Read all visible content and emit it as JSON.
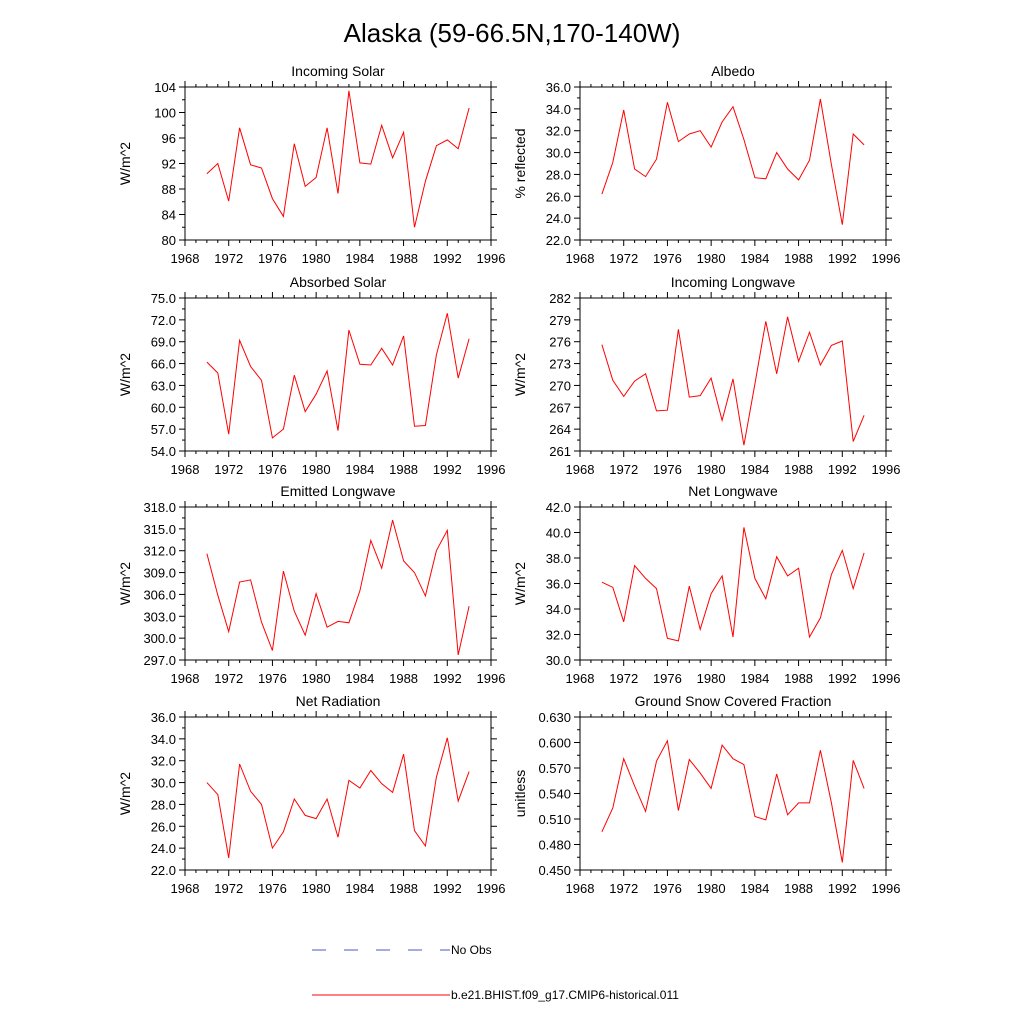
{
  "page_title": "Alaska (59-66.5N,170-140W)",
  "legend": {
    "items": [
      {
        "label": "No Obs",
        "color": "#4a5bc4",
        "dashed": true
      },
      {
        "label": "b.e21.BHIST.f09_g17.CMIP6-historical.011",
        "color": "#ff0000",
        "dashed": false
      }
    ]
  },
  "chart_data": [
    {
      "type": "line",
      "title": "Incoming Solar",
      "ylabel": "W/m^2",
      "xlim": [
        1968,
        1996
      ],
      "ylim": [
        80,
        104
      ],
      "xticks": [
        1968,
        1972,
        1976,
        1980,
        1984,
        1988,
        1992,
        1996
      ],
      "xtick_labels": [
        "1968",
        "1972",
        "1976",
        "1980",
        "1984",
        "1988",
        "1992",
        "1996"
      ],
      "yticks": [
        80,
        84,
        88,
        92,
        96,
        100,
        104
      ],
      "ytick_labels": [
        "80",
        "84",
        "88",
        "92",
        "96",
        "100",
        "104"
      ],
      "grid": false,
      "series": [
        {
          "color": "#ff0000",
          "x": [
            1970,
            1971,
            1972,
            1973,
            1974,
            1975,
            1976,
            1977,
            1978,
            1979,
            1980,
            1981,
            1982,
            1983,
            1984,
            1985,
            1986,
            1987,
            1988,
            1989,
            1990,
            1991,
            1992,
            1993,
            1994
          ],
          "y": [
            90.4,
            92.0,
            86.1,
            97.6,
            91.8,
            91.3,
            86.5,
            83.7,
            95.1,
            88.4,
            89.8,
            97.6,
            87.3,
            103.4,
            92.1,
            91.9,
            98.0,
            92.9,
            96.9,
            82.0,
            89.2,
            94.8,
            95.7,
            94.3,
            100.7
          ]
        }
      ]
    },
    {
      "type": "line",
      "title": "Albedo",
      "ylabel": "% reflected",
      "xlim": [
        1968,
        1996
      ],
      "ylim": [
        22,
        36
      ],
      "xticks": [
        1968,
        1972,
        1976,
        1980,
        1984,
        1988,
        1992,
        1996
      ],
      "xtick_labels": [
        "1968",
        "1972",
        "1976",
        "1980",
        "1984",
        "1988",
        "1992",
        "1996"
      ],
      "yticks": [
        22,
        24,
        26,
        28,
        30,
        32,
        34,
        36
      ],
      "ytick_labels": [
        "22.0",
        "24.0",
        "26.0",
        "28.0",
        "30.0",
        "32.0",
        "34.0",
        "36.0"
      ],
      "grid": false,
      "series": [
        {
          "color": "#ff0000",
          "x": [
            1970,
            1971,
            1972,
            1973,
            1974,
            1975,
            1976,
            1977,
            1978,
            1979,
            1980,
            1981,
            1982,
            1983,
            1984,
            1985,
            1986,
            1987,
            1988,
            1989,
            1990,
            1991,
            1992,
            1993,
            1994
          ],
          "y": [
            26.2,
            29.1,
            33.9,
            28.5,
            27.8,
            29.4,
            34.6,
            31.0,
            31.7,
            32.0,
            30.5,
            32.8,
            34.2,
            31.2,
            27.7,
            27.6,
            30.0,
            28.5,
            27.5,
            29.3,
            34.9,
            28.9,
            23.4,
            31.7,
            30.7
          ]
        }
      ]
    },
    {
      "type": "line",
      "title": "Absorbed Solar",
      "ylabel": "W/m^2",
      "xlim": [
        1968,
        1996
      ],
      "ylim": [
        54,
        75
      ],
      "xticks": [
        1968,
        1972,
        1976,
        1980,
        1984,
        1988,
        1992,
        1996
      ],
      "xtick_labels": [
        "1968",
        "1972",
        "1976",
        "1980",
        "1984",
        "1988",
        "1992",
        "1996"
      ],
      "yticks": [
        54,
        57,
        60,
        63,
        66,
        69,
        72,
        75
      ],
      "ytick_labels": [
        "54.0",
        "57.0",
        "60.0",
        "63.0",
        "66.0",
        "69.0",
        "72.0",
        "75.0"
      ],
      "grid": false,
      "series": [
        {
          "color": "#ff0000",
          "x": [
            1970,
            1971,
            1972,
            1973,
            1974,
            1975,
            1976,
            1977,
            1978,
            1979,
            1980,
            1981,
            1982,
            1983,
            1984,
            1985,
            1986,
            1987,
            1988,
            1989,
            1990,
            1991,
            1992,
            1993,
            1994
          ],
          "y": [
            66.2,
            64.7,
            56.3,
            69.2,
            65.6,
            63.7,
            55.8,
            57.0,
            64.4,
            59.4,
            61.8,
            65.0,
            56.8,
            70.6,
            65.9,
            65.8,
            68.1,
            65.8,
            69.8,
            57.4,
            57.5,
            67.2,
            72.9,
            64.0,
            69.4
          ]
        }
      ]
    },
    {
      "type": "line",
      "title": "Incoming Longwave",
      "ylabel": "W/m^2",
      "xlim": [
        1968,
        1996
      ],
      "ylim": [
        261,
        282
      ],
      "xticks": [
        1968,
        1972,
        1976,
        1980,
        1984,
        1988,
        1992,
        1996
      ],
      "xtick_labels": [
        "1968",
        "1972",
        "1976",
        "1980",
        "1984",
        "1988",
        "1992",
        "1996"
      ],
      "yticks": [
        261,
        264,
        267,
        270,
        273,
        276,
        279,
        282
      ],
      "ytick_labels": [
        "261",
        "264",
        "267",
        "270",
        "273",
        "276",
        "279",
        "282"
      ],
      "grid": false,
      "series": [
        {
          "color": "#ff0000",
          "x": [
            1970,
            1971,
            1972,
            1973,
            1974,
            1975,
            1976,
            1977,
            1978,
            1979,
            1980,
            1981,
            1982,
            1983,
            1984,
            1985,
            1986,
            1987,
            1988,
            1989,
            1990,
            1991,
            1992,
            1993,
            1994
          ],
          "y": [
            275.6,
            270.7,
            268.5,
            270.6,
            271.6,
            266.5,
            266.6,
            277.7,
            268.4,
            268.6,
            271.0,
            265.2,
            270.9,
            261.8,
            270.2,
            278.8,
            271.6,
            279.4,
            273.3,
            277.3,
            272.8,
            275.5,
            276.1,
            262.3,
            265.9
          ]
        }
      ]
    },
    {
      "type": "line",
      "title": "Emitted Longwave",
      "ylabel": "W/m^2",
      "xlim": [
        1968,
        1996
      ],
      "ylim": [
        297,
        318
      ],
      "xticks": [
        1968,
        1972,
        1976,
        1980,
        1984,
        1988,
        1992,
        1996
      ],
      "xtick_labels": [
        "1968",
        "1972",
        "1976",
        "1980",
        "1984",
        "1988",
        "1992",
        "1996"
      ],
      "yticks": [
        297,
        300,
        303,
        306,
        309,
        312,
        315,
        318
      ],
      "ytick_labels": [
        "297.0",
        "300.0",
        "303.0",
        "306.0",
        "309.0",
        "312.0",
        "315.0",
        "318.0"
      ],
      "grid": false,
      "series": [
        {
          "color": "#ff0000",
          "x": [
            1970,
            1971,
            1972,
            1973,
            1974,
            1975,
            1976,
            1977,
            1978,
            1979,
            1980,
            1981,
            1982,
            1983,
            1984,
            1985,
            1986,
            1987,
            1988,
            1989,
            1990,
            1991,
            1992,
            1993,
            1994
          ],
          "y": [
            311.6,
            305.9,
            300.9,
            307.7,
            308.0,
            302.2,
            298.3,
            309.2,
            303.7,
            300.4,
            306.1,
            301.5,
            302.3,
            302.1,
            306.5,
            313.4,
            309.6,
            316.2,
            310.6,
            309.0,
            305.8,
            312.0,
            314.8,
            297.7,
            304.4
          ]
        }
      ]
    },
    {
      "type": "line",
      "title": "Net Longwave",
      "ylabel": "W/m^2",
      "xlim": [
        1968,
        1996
      ],
      "ylim": [
        30,
        42
      ],
      "xticks": [
        1968,
        1972,
        1976,
        1980,
        1984,
        1988,
        1992,
        1996
      ],
      "xtick_labels": [
        "1968",
        "1972",
        "1976",
        "1980",
        "1984",
        "1988",
        "1992",
        "1996"
      ],
      "yticks": [
        30,
        32,
        34,
        36,
        38,
        40,
        42
      ],
      "ytick_labels": [
        "30.0",
        "32.0",
        "34.0",
        "36.0",
        "38.0",
        "40.0",
        "42.0"
      ],
      "grid": false,
      "series": [
        {
          "color": "#ff0000",
          "x": [
            1970,
            1971,
            1972,
            1973,
            1974,
            1975,
            1976,
            1977,
            1978,
            1979,
            1980,
            1981,
            1982,
            1983,
            1984,
            1985,
            1986,
            1987,
            1988,
            1989,
            1990,
            1991,
            1992,
            1993,
            1994
          ],
          "y": [
            36.1,
            35.7,
            33.0,
            37.4,
            36.4,
            35.6,
            31.7,
            31.5,
            35.8,
            32.4,
            35.2,
            36.6,
            31.8,
            40.4,
            36.4,
            34.8,
            38.1,
            36.6,
            37.2,
            31.8,
            33.3,
            36.7,
            38.6,
            35.6,
            38.4
          ]
        }
      ]
    },
    {
      "type": "line",
      "title": "Net Radiation",
      "ylabel": "W/m^2",
      "xlim": [
        1968,
        1996
      ],
      "ylim": [
        22,
        36
      ],
      "xticks": [
        1968,
        1972,
        1976,
        1980,
        1984,
        1988,
        1992,
        1996
      ],
      "xtick_labels": [
        "1968",
        "1972",
        "1976",
        "1980",
        "1984",
        "1988",
        "1992",
        "1996"
      ],
      "yticks": [
        22,
        24,
        26,
        28,
        30,
        32,
        34,
        36
      ],
      "ytick_labels": [
        "22.0",
        "24.0",
        "26.0",
        "28.0",
        "30.0",
        "32.0",
        "34.0",
        "36.0"
      ],
      "grid": false,
      "series": [
        {
          "color": "#ff0000",
          "x": [
            1970,
            1971,
            1972,
            1973,
            1974,
            1975,
            1976,
            1977,
            1978,
            1979,
            1980,
            1981,
            1982,
            1983,
            1984,
            1985,
            1986,
            1987,
            1988,
            1989,
            1990,
            1991,
            1992,
            1993,
            1994
          ],
          "y": [
            30.0,
            28.9,
            23.1,
            31.7,
            29.2,
            28.0,
            24.0,
            25.5,
            28.5,
            27.0,
            26.7,
            28.5,
            25.0,
            30.2,
            29.5,
            31.1,
            29.9,
            29.1,
            32.6,
            25.6,
            24.2,
            30.5,
            34.1,
            28.3,
            31.0
          ]
        }
      ]
    },
    {
      "type": "line",
      "title": "Ground Snow Covered Fraction",
      "ylabel": "unitless",
      "xlim": [
        1968,
        1996
      ],
      "ylim": [
        0.45,
        0.63
      ],
      "xticks": [
        1968,
        1972,
        1976,
        1980,
        1984,
        1988,
        1992,
        1996
      ],
      "xtick_labels": [
        "1968",
        "1972",
        "1976",
        "1980",
        "1984",
        "1988",
        "1992",
        "1996"
      ],
      "yticks": [
        0.45,
        0.48,
        0.51,
        0.54,
        0.57,
        0.6,
        0.63
      ],
      "ytick_labels": [
        "0.450",
        "0.480",
        "0.510",
        "0.540",
        "0.570",
        "0.600",
        "0.630"
      ],
      "grid": false,
      "series": [
        {
          "color": "#ff0000",
          "x": [
            1970,
            1971,
            1972,
            1973,
            1974,
            1975,
            1976,
            1977,
            1978,
            1979,
            1980,
            1981,
            1982,
            1983,
            1984,
            1985,
            1986,
            1987,
            1988,
            1989,
            1990,
            1991,
            1992,
            1993,
            1994
          ],
          "y": [
            0.495,
            0.523,
            0.581,
            0.549,
            0.519,
            0.578,
            0.602,
            0.52,
            0.58,
            0.564,
            0.546,
            0.597,
            0.581,
            0.574,
            0.513,
            0.509,
            0.563,
            0.515,
            0.529,
            0.529,
            0.591,
            0.529,
            0.459,
            0.579,
            0.546
          ]
        }
      ]
    }
  ]
}
